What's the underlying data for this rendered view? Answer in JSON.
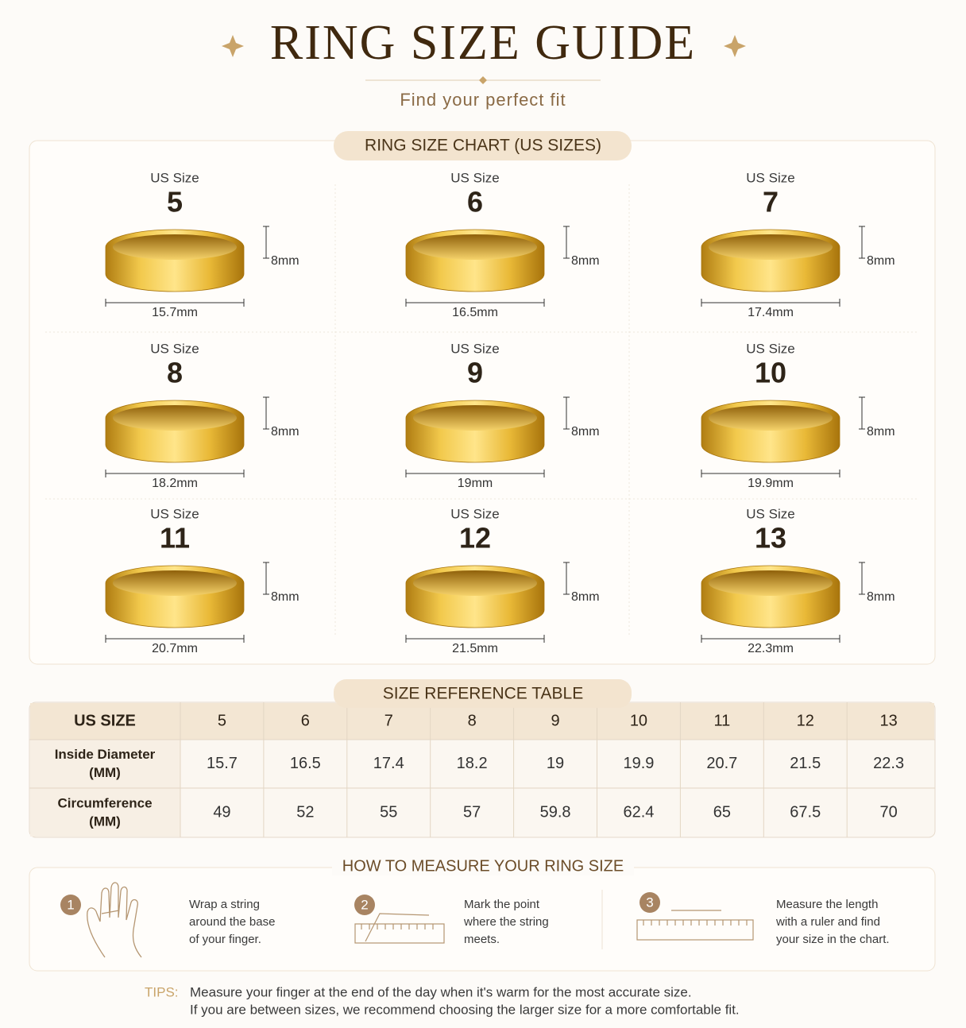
{
  "header": {
    "title": "RING SIZE GUIDE",
    "subtitle": "Find your perfect fit"
  },
  "chart": {
    "title": "RING SIZE CHART (US SIZES)",
    "rings": [
      {
        "label": "US Size",
        "size": "5",
        "width": "8mm",
        "diameter": "15.7mm"
      },
      {
        "label": "US Size",
        "size": "6",
        "width": "8mm",
        "diameter": "16.5mm"
      },
      {
        "label": "US Size",
        "size": "7",
        "width": "8mm",
        "diameter": "17.4mm"
      },
      {
        "label": "US Size",
        "size": "8",
        "width": "8mm",
        "diameter": "18.2mm"
      },
      {
        "label": "US Size",
        "size": "9",
        "width": "8mm",
        "diameter": "19mm"
      },
      {
        "label": "US Size",
        "size": "10",
        "width": "8mm",
        "diameter": "19.9mm"
      },
      {
        "label": "US Size",
        "size": "11",
        "width": "8mm",
        "diameter": "20.7mm"
      },
      {
        "label": "US Size",
        "size": "12",
        "width": "8mm",
        "diameter": "21.5mm"
      },
      {
        "label": "US Size",
        "size": "13",
        "width": "8mm",
        "diameter": "22.3mm"
      }
    ]
  },
  "table": {
    "title": "SIZE REFERENCE TABLE",
    "header": [
      "US SIZE",
      "5",
      "6",
      "7",
      "8",
      "9",
      "10",
      "11",
      "12",
      "13"
    ],
    "rows": [
      {
        "label": [
          "Inside Diameter",
          "(MM)"
        ],
        "cells": [
          "15.7",
          "16.5",
          "17.4",
          "18.2",
          "19",
          "19.9",
          "20.7",
          "21.5",
          "22.3"
        ]
      },
      {
        "label": [
          "Circumference",
          "(MM)"
        ],
        "cells": [
          "49",
          "52",
          "55",
          "57",
          "59.8",
          "62.4",
          "65",
          "67.5",
          "70"
        ]
      }
    ]
  },
  "measure": {
    "title": "HOW TO MEASURE YOUR RING SIZE",
    "steps": [
      {
        "number": "1",
        "lines": [
          "Wrap a string",
          "around the base",
          "of your finger."
        ]
      },
      {
        "number": "2",
        "lines": [
          "Mark the point",
          "where the string",
          "meets."
        ]
      },
      {
        "number": "3",
        "lines": [
          "Measure the length",
          "with a ruler and find",
          "your size in the chart."
        ]
      }
    ]
  },
  "tips": {
    "label": "TIPS:",
    "lines": [
      "Measure your finger at the end of the day when it's warm for the most accurate size.",
      "If you are between sizes, we recommend choosing the larger size for a more comfortable fit."
    ]
  }
}
